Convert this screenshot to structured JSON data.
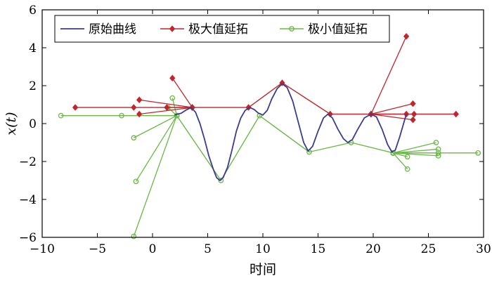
{
  "chart_data": {
    "type": "line",
    "xlabel": "时间",
    "ylabel": "x(t)",
    "xlim": [
      -10,
      30
    ],
    "ylim": [
      -6,
      6
    ],
    "x_ticks": [
      -10,
      -5,
      0,
      5,
      10,
      15,
      20,
      25,
      30
    ],
    "y_ticks": [
      -6,
      -4,
      -2,
      0,
      2,
      4,
      6
    ],
    "x_tick_labels": [
      "−10",
      "−5",
      "0",
      "5",
      "10",
      "15",
      "20",
      "25",
      "30"
    ],
    "y_tick_labels": [
      "−6",
      "−4",
      "−2",
      "0",
      "2",
      "4",
      "6"
    ],
    "grid": false,
    "legend_position": "top-left",
    "series": [
      {
        "name": "原始曲线",
        "color": "#3b3b8f",
        "marker": "none",
        "points": [
          [
            2.0,
            0.45
          ],
          [
            2.6,
            0.55
          ],
          [
            3.0,
            0.7
          ],
          [
            3.5,
            0.85
          ],
          [
            3.9,
            0.6
          ],
          [
            4.3,
            0.0
          ],
          [
            4.7,
            -0.8
          ],
          [
            5.1,
            -1.7
          ],
          [
            5.5,
            -2.4
          ],
          [
            5.8,
            -2.85
          ],
          [
            6.1,
            -3.0
          ],
          [
            6.4,
            -2.85
          ],
          [
            6.8,
            -2.3
          ],
          [
            7.2,
            -1.4
          ],
          [
            7.6,
            -0.4
          ],
          [
            8.0,
            0.3
          ],
          [
            8.4,
            0.7
          ],
          [
            8.8,
            0.85
          ],
          [
            9.2,
            0.75
          ],
          [
            9.6,
            0.55
          ],
          [
            10.0,
            0.45
          ],
          [
            10.4,
            0.7
          ],
          [
            10.8,
            1.3
          ],
          [
            11.3,
            1.85
          ],
          [
            11.75,
            2.1
          ],
          [
            12.2,
            1.9
          ],
          [
            12.7,
            1.2
          ],
          [
            13.2,
            0.1
          ],
          [
            13.7,
            -1.0
          ],
          [
            14.1,
            -1.45
          ],
          [
            14.5,
            -1.2
          ],
          [
            15.0,
            -0.4
          ],
          [
            15.5,
            0.3
          ],
          [
            15.9,
            0.5
          ],
          [
            16.3,
            0.3
          ],
          [
            16.8,
            -0.3
          ],
          [
            17.3,
            -0.8
          ],
          [
            17.7,
            -1.0
          ],
          [
            18.1,
            -0.85
          ],
          [
            18.6,
            -0.3
          ],
          [
            19.2,
            0.3
          ],
          [
            19.8,
            0.5
          ],
          [
            20.3,
            0.35
          ],
          [
            20.8,
            -0.3
          ],
          [
            21.3,
            -1.1
          ],
          [
            21.7,
            -1.5
          ],
          [
            22.0,
            -1.4
          ],
          [
            22.4,
            -0.7
          ],
          [
            22.8,
            0.1
          ],
          [
            23.0,
            0.5
          ]
        ]
      },
      {
        "name": "极大值延拓",
        "color": "#c0262d",
        "marker": "diamond",
        "points": [
          [
            -7.0,
            0.85
          ],
          [
            -1.7,
            0.85
          ],
          [
            3.6,
            0.85
          ],
          [
            8.7,
            0.85
          ],
          [
            11.75,
            2.15
          ],
          [
            16.1,
            0.5
          ],
          [
            19.8,
            0.5
          ],
          [
            23.7,
            0.5
          ],
          [
            27.5,
            0.5
          ]
        ],
        "extra_segments": [
          [
            [
              -1.2,
              1.25
            ],
            [
              3.6,
              0.85
            ]
          ],
          [
            [
              -1.2,
              0.5
            ],
            [
              3.6,
              0.85
            ]
          ],
          [
            [
              1.8,
              2.4
            ],
            [
              3.6,
              0.85
            ]
          ],
          [
            [
              1.3,
              0.85
            ],
            [
              3.6,
              0.85
            ]
          ],
          [
            [
              19.8,
              0.5
            ],
            [
              23.0,
              4.6
            ]
          ],
          [
            [
              19.8,
              0.5
            ],
            [
              23.6,
              1.05
            ]
          ],
          [
            [
              19.8,
              0.5
            ],
            [
              23.0,
              0.5
            ]
          ],
          [
            [
              19.8,
              0.5
            ],
            [
              23.6,
              0.2
            ]
          ]
        ]
      },
      {
        "name": "极小值延拓",
        "color": "#6ab845",
        "marker": "circle",
        "points": [
          [
            -8.3,
            0.42
          ],
          [
            -2.8,
            0.42
          ],
          [
            2.2,
            0.42
          ],
          [
            6.2,
            -3.0
          ],
          [
            9.7,
            0.42
          ],
          [
            14.2,
            -1.5
          ],
          [
            18.0,
            -1.0
          ],
          [
            21.8,
            -1.55
          ],
          [
            29.5,
            -1.55
          ]
        ],
        "extra_segments": [
          [
            [
              -1.7,
              -0.75
            ],
            [
              2.2,
              0.42
            ]
          ],
          [
            [
              -1.5,
              -3.05
            ],
            [
              2.2,
              0.42
            ]
          ],
          [
            [
              -1.7,
              -5.95
            ],
            [
              2.2,
              0.42
            ]
          ],
          [
            [
              1.8,
              1.35
            ],
            [
              2.2,
              0.42
            ]
          ],
          [
            [
              1.4,
              0.85
            ],
            [
              2.2,
              0.42
            ]
          ],
          [
            [
              21.8,
              -1.55
            ],
            [
              25.7,
              -1.0
            ]
          ],
          [
            [
              21.8,
              -1.55
            ],
            [
              25.9,
              -1.35
            ]
          ],
          [
            [
              21.8,
              -1.55
            ],
            [
              25.9,
              -1.55
            ]
          ],
          [
            [
              21.8,
              -1.55
            ],
            [
              25.9,
              -1.7
            ]
          ],
          [
            [
              21.8,
              -1.55
            ],
            [
              23.1,
              -2.4
            ]
          ],
          [
            [
              21.8,
              -1.55
            ],
            [
              23.1,
              -1.75
            ]
          ]
        ]
      }
    ]
  }
}
